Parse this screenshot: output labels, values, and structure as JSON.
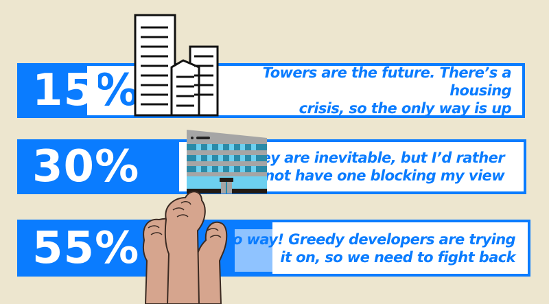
{
  "colors": {
    "background": "#ede6cf",
    "accent": "#0a7cff",
    "text_box": "#ffffff"
  },
  "items": [
    {
      "percent": "15%",
      "value": 15,
      "text_line1": "Towers are the future. There’s a housing",
      "text_line2": "crisis, so the only way is up",
      "icon": "skyscrapers-icon"
    },
    {
      "percent": "30%",
      "value": 30,
      "text_line1": "They are inevitable, but I’d rather",
      "text_line2": "not have one blocking my view",
      "icon": "office-building-icon"
    },
    {
      "percent": "55%",
      "value": 55,
      "text_line1": "No way! Greedy developers are trying",
      "text_line2": "it on, so we need to fight back",
      "icon": "raised-fists-icon"
    }
  ]
}
